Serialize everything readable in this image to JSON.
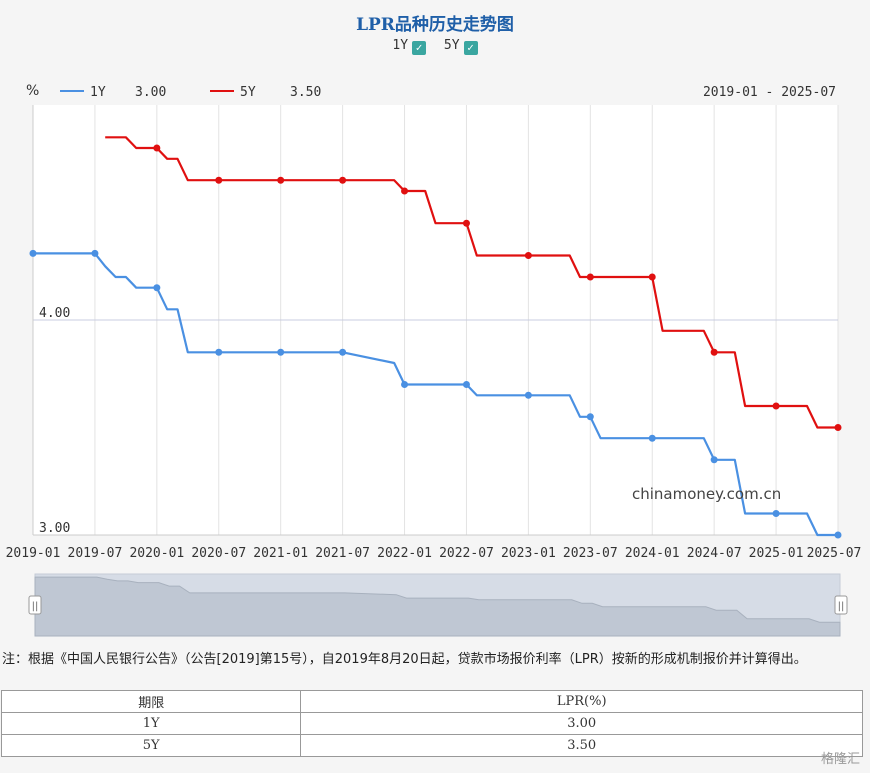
{
  "title": "LPR品种历史走势图",
  "toggles": [
    {
      "label": "1Y",
      "checked": true
    },
    {
      "label": "5Y",
      "checked": true
    }
  ],
  "unit": "%",
  "legend": [
    {
      "name": "1Y",
      "value": "3.00",
      "color": "#4a90e2"
    },
    {
      "name": "5Y",
      "value": "3.50",
      "color": "#e01010"
    }
  ],
  "date_range": "2019-01 - 2025-07",
  "watermark": "chinamoney.com.cn",
  "note": "注：根据《中国人民银行公告》（公告[2019]第15号），自2019年8月20日起，贷款市场报价利率（LPR）按新的形成机制报价并计算得出。",
  "table": {
    "headers": [
      "期限",
      "LPR(%)"
    ],
    "rows": [
      [
        "1Y",
        "3.00"
      ],
      [
        "5Y",
        "3.50"
      ]
    ]
  },
  "logo": "格隆汇",
  "chart_data": {
    "type": "line",
    "x_ticks": [
      "2019-01",
      "2019-07",
      "2020-01",
      "2020-07",
      "2021-01",
      "2021-07",
      "2022-01",
      "2022-07",
      "2023-01",
      "2023-07",
      "2024-01",
      "2024-07",
      "2025-01",
      "2025-07"
    ],
    "y_ticks": [
      "3.00",
      "4.00"
    ],
    "ylim": [
      3.0,
      5.0
    ],
    "xlim": [
      "2019-01",
      "2025-07"
    ],
    "grid": true,
    "legend_position": "top-left",
    "series": [
      {
        "name": "1Y",
        "color": "#4a90e2",
        "points": [
          [
            "2019-01",
            4.31
          ],
          [
            "2019-07",
            4.31
          ],
          [
            "2019-08",
            4.25
          ],
          [
            "2019-09",
            4.2
          ],
          [
            "2019-10",
            4.2
          ],
          [
            "2019-11",
            4.15
          ],
          [
            "2019-12",
            4.15
          ],
          [
            "2020-01",
            4.15
          ],
          [
            "2020-02",
            4.05
          ],
          [
            "2020-03",
            4.05
          ],
          [
            "2020-04",
            3.85
          ],
          [
            "2020-07",
            3.85
          ],
          [
            "2021-01",
            3.85
          ],
          [
            "2021-07",
            3.85
          ],
          [
            "2021-12",
            3.8
          ],
          [
            "2022-01",
            3.7
          ],
          [
            "2022-07",
            3.7
          ],
          [
            "2022-08",
            3.65
          ],
          [
            "2023-01",
            3.65
          ],
          [
            "2023-05",
            3.65
          ],
          [
            "2023-06",
            3.55
          ],
          [
            "2023-07",
            3.55
          ],
          [
            "2023-08",
            3.45
          ],
          [
            "2024-01",
            3.45
          ],
          [
            "2024-06",
            3.45
          ],
          [
            "2024-07",
            3.35
          ],
          [
            "2024-09",
            3.35
          ],
          [
            "2024-10",
            3.1
          ],
          [
            "2025-01",
            3.1
          ],
          [
            "2025-04",
            3.1
          ],
          [
            "2025-05",
            3.0
          ],
          [
            "2025-07",
            3.0
          ]
        ],
        "markers": [
          "2019-01",
          "2019-07",
          "2020-01",
          "2020-07",
          "2021-01",
          "2021-07",
          "2022-01",
          "2022-07",
          "2023-01",
          "2023-07",
          "2024-01",
          "2024-07",
          "2025-01",
          "2025-07"
        ]
      },
      {
        "name": "5Y",
        "color": "#e01010",
        "points": [
          [
            "2019-08",
            4.85
          ],
          [
            "2019-10",
            4.85
          ],
          [
            "2019-11",
            4.8
          ],
          [
            "2020-01",
            4.8
          ],
          [
            "2020-02",
            4.75
          ],
          [
            "2020-03",
            4.75
          ],
          [
            "2020-04",
            4.65
          ],
          [
            "2020-07",
            4.65
          ],
          [
            "2021-01",
            4.65
          ],
          [
            "2021-07",
            4.65
          ],
          [
            "2021-12",
            4.65
          ],
          [
            "2022-01",
            4.6
          ],
          [
            "2022-03",
            4.6
          ],
          [
            "2022-04",
            4.45
          ],
          [
            "2022-07",
            4.45
          ],
          [
            "2022-08",
            4.3
          ],
          [
            "2023-01",
            4.3
          ],
          [
            "2023-05",
            4.3
          ],
          [
            "2023-06",
            4.2
          ],
          [
            "2023-07",
            4.2
          ],
          [
            "2024-01",
            4.2
          ],
          [
            "2024-02",
            3.95
          ],
          [
            "2024-06",
            3.95
          ],
          [
            "2024-07",
            3.85
          ],
          [
            "2024-09",
            3.85
          ],
          [
            "2024-10",
            3.6
          ],
          [
            "2025-01",
            3.6
          ],
          [
            "2025-04",
            3.6
          ],
          [
            "2025-05",
            3.5
          ],
          [
            "2025-07",
            3.5
          ]
        ],
        "markers": [
          "2020-01",
          "2020-07",
          "2021-01",
          "2021-07",
          "2022-01",
          "2022-07",
          "2023-01",
          "2023-07",
          "2024-01",
          "2024-07",
          "2025-01",
          "2025-07"
        ]
      }
    ]
  }
}
